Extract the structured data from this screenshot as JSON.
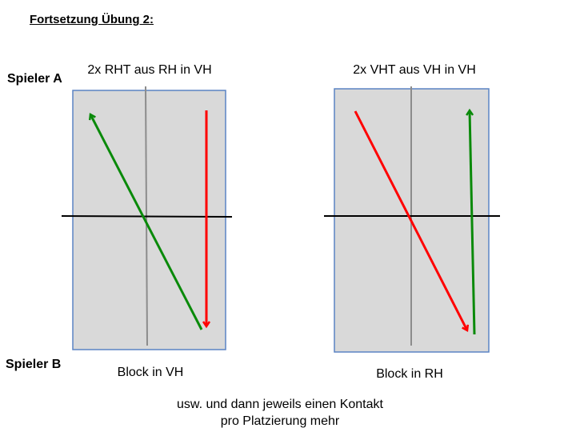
{
  "title": "Fortsetzung Übung 2:",
  "players": {
    "a": "Spieler A",
    "b": "Spieler B"
  },
  "diagrams": [
    {
      "top_label": "2x RHT aus RH in VH",
      "bottom_label": "Block in VH"
    },
    {
      "top_label": "2x VHT aus VH in VH",
      "bottom_label": "Block in RH"
    }
  ],
  "footer": {
    "line1": "usw. und dann jeweils einen Kontakt",
    "line2": "pro Platzierung mehr"
  },
  "colors": {
    "table_fill": "#d9d9d9",
    "table_border": "#5b84c4",
    "center_line": "#8c8c8c",
    "net": "#000000",
    "green_arrow": "#0a8a0a",
    "red_arrow": "#ff0000"
  }
}
